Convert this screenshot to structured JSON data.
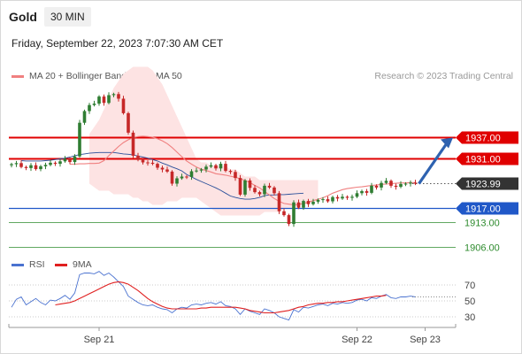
{
  "header": {
    "title": "Gold",
    "timeframe": "30 MIN",
    "datetime": "Friday, September 22, 2023 7:07:30 AM CET",
    "credit": "Research © 2023 Trading Central"
  },
  "legend": {
    "ma20": {
      "label": "MA 20 + Bollinger Bands",
      "color": "#f08080"
    },
    "ma50": {
      "label": "MA 50",
      "color": "#2a4f9a"
    }
  },
  "rsi_legend": {
    "rsi": {
      "label": "RSI",
      "color": "#4a72d0"
    },
    "ma": {
      "label": "9MA",
      "color": "#e02020"
    }
  },
  "colors": {
    "resistance": "#e00000",
    "support": "#2058c8",
    "target": "#2e8b2e",
    "price_tag": "#333333",
    "candle_up": "#2f7d32",
    "candle_down": "#c62828",
    "arrow": "#2e62b0",
    "band_fill": "#fde3e3"
  },
  "chart_data": [
    {
      "type": "candlestick",
      "title": "Gold",
      "x_tick_labels": [
        "Sep 21",
        "Sep 22",
        "Sep 23"
      ],
      "x_tick_positions": [
        18,
        71,
        85
      ],
      "ylim": [
        1898,
        1966
      ],
      "levels": [
        {
          "value": 1937.0,
          "label": "1937.00",
          "kind": "resistance"
        },
        {
          "value": 1931.0,
          "label": "1931.00",
          "kind": "resistance"
        },
        {
          "value": 1923.99,
          "label": "1923.99",
          "kind": "last_price"
        },
        {
          "value": 1917.0,
          "label": "1917.00",
          "kind": "support"
        },
        {
          "value": 1913.0,
          "label": "1913.00",
          "kind": "target"
        },
        {
          "value": 1906.0,
          "label": "1906.00",
          "kind": "target"
        }
      ],
      "closes": [
        1929.5,
        1929.8,
        1928.7,
        1928.4,
        1929.2,
        1928.1,
        1928.9,
        1929.3,
        1929.9,
        1929.6,
        1930.3,
        1931.0,
        1930.1,
        1931.7,
        1941.2,
        1944.5,
        1946.2,
        1946.6,
        1948.6,
        1946.8,
        1949.0,
        1949.3,
        1948.0,
        1943.9,
        1938.4,
        1931.9,
        1930.7,
        1930.0,
        1929.9,
        1929.6,
        1928.5,
        1928.0,
        1927.4,
        1924.0,
        1925.5,
        1926.0,
        1925.9,
        1927.5,
        1927.7,
        1928.0,
        1928.8,
        1929.2,
        1928.3,
        1929.6,
        1927.6,
        1927.3,
        1925.6,
        1920.9,
        1924.9,
        1922.8,
        1921.6,
        1921.0,
        1923.4,
        1922.9,
        1921.3,
        1916.2,
        1915.1,
        1912.6,
        1918.7,
        1917.2,
        1919.1,
        1918.2,
        1918.9,
        1919.4,
        1919.6,
        1919.0,
        1920.2,
        1919.8,
        1920.3,
        1920.0,
        1920.3,
        1921.3,
        1921.9,
        1921.4,
        1923.4,
        1922.9,
        1924.2,
        1924.8,
        1923.4,
        1923.1,
        1923.9,
        1924.0,
        1924.3,
        1923.99
      ],
      "ma20": [
        1929.5,
        1929.5,
        1929.6,
        1929.6,
        1929.7,
        1929.7,
        1929.8,
        1930.5,
        1931.9,
        1933.2,
        1934.5,
        1935.6,
        1936.4,
        1937.0,
        1937.3,
        1937.4,
        1937.3,
        1937.1,
        1936.7,
        1936.1,
        1935.3,
        1934.2,
        1932.9,
        1931.6,
        1930.4,
        1929.5,
        1928.7,
        1928.1,
        1927.7,
        1927.3,
        1926.8,
        1926.6,
        1926.4,
        1926.1,
        1925.8,
        1925.4,
        1924.9,
        1924.3,
        1923.5,
        1922.8,
        1921.8,
        1920.8,
        1919.8,
        1919.0,
        1918.4,
        1918.2,
        1918.0,
        1918.1,
        1918.4,
        1918.7,
        1919.2,
        1919.6,
        1920.0,
        1920.6,
        1921.3,
        1921.8,
        1922.3,
        1922.6,
        1922.8,
        1923.0,
        1923.1,
        1923.3,
        1923.5,
        1923.6,
        1923.8,
        1923.9,
        1924.0,
        1924.1,
        1924.2,
        1924.2,
        1924.3,
        1924.3
      ],
      "ma50": [
        1930.5,
        1930.4,
        1930.4,
        1930.4,
        1930.4,
        1930.5,
        1930.6,
        1930.8,
        1931.0,
        1931.2,
        1931.5,
        1931.9,
        1932.2,
        1932.4,
        1932.6,
        1932.7,
        1932.8,
        1932.8,
        1932.8,
        1932.8,
        1932.6,
        1932.4,
        1932.3,
        1932.1,
        1931.8,
        1931.5,
        1931.2,
        1930.8,
        1930.4,
        1929.8,
        1929.3,
        1928.7,
        1928.2,
        1927.6,
        1926.6,
        1925.9,
        1925.2,
        1924.6,
        1924.0,
        1923.4,
        1922.8,
        1922.1,
        1921.3,
        1920.5,
        1920.1,
        1919.8,
        1919.6,
        1919.6,
        1919.8,
        1920.1,
        1920.6,
        1920.8,
        1920.8,
        1920.9,
        1920.9,
        1921.0,
        1921.1,
        1921.2,
        1921.3
      ],
      "bb_upper": [
        1938,
        1940,
        1942,
        1945,
        1948,
        1951,
        1953,
        1955,
        1956,
        1957,
        1957,
        1957,
        1957,
        1956,
        1954,
        1952,
        1949,
        1946,
        1943,
        1940,
        1937,
        1934,
        1931,
        1930,
        1930,
        1929,
        1929,
        1929,
        1929,
        1928,
        1928,
        1927,
        1926,
        1926,
        1926,
        1925,
        1925,
        1925,
        1925,
        1925,
        1925,
        1925,
        1925,
        1925,
        1925,
        1925,
        1925,
        1925
      ],
      "bb_lower": [
        1924,
        1923,
        1922,
        1922,
        1922,
        1921,
        1921,
        1921,
        1921,
        1920,
        1920,
        1919,
        1919,
        1918,
        1918,
        1918,
        1919,
        1919,
        1919,
        1920,
        1920,
        1920,
        1920,
        1919,
        1918,
        1917,
        1916,
        1915,
        1915,
        1915,
        1915,
        1915,
        1915,
        1915,
        1915,
        1915,
        1916,
        1916,
        1916,
        1916,
        1917,
        1917,
        1917,
        1918,
        1918,
        1919,
        1919,
        1919
      ]
    },
    {
      "type": "line",
      "title": "RSI",
      "y_tick_labels": [
        "70",
        "50",
        "30"
      ],
      "ylim": [
        10,
        90
      ],
      "series": [
        {
          "name": "RSI",
          "values": [
            42,
            52,
            55,
            45,
            49,
            53,
            48,
            45,
            51,
            50,
            53,
            57,
            52,
            60,
            83,
            85,
            85,
            84,
            87,
            82,
            85,
            80,
            74,
            68,
            56,
            52,
            48,
            45,
            44,
            45,
            42,
            40,
            39,
            35,
            40,
            42,
            41,
            45,
            46,
            45,
            47,
            48,
            46,
            49,
            44,
            43,
            40,
            33,
            40,
            37,
            35,
            33,
            40,
            38,
            35,
            30,
            28,
            26,
            39,
            36,
            42,
            41,
            43,
            45,
            46,
            44,
            47,
            46,
            48,
            47,
            48,
            51,
            52,
            50,
            54,
            53,
            56,
            58,
            54,
            53,
            55,
            55,
            56,
            55
          ]
        },
        {
          "name": "9MA",
          "values": [
            45,
            46,
            47,
            48,
            50,
            53,
            56,
            59,
            62,
            65,
            68,
            71,
            73,
            74,
            73,
            71,
            67,
            63,
            58,
            53,
            49,
            46,
            43,
            41,
            40,
            40,
            40,
            40,
            40,
            40,
            41,
            41,
            42,
            42,
            42,
            42,
            42,
            42,
            41,
            40,
            38,
            37,
            36,
            35,
            35,
            35,
            36,
            37,
            38,
            40,
            42,
            43,
            45,
            46,
            47,
            47,
            48,
            48,
            49,
            49,
            50,
            51,
            52,
            53,
            54,
            55,
            56,
            56,
            57
          ]
        }
      ]
    }
  ]
}
